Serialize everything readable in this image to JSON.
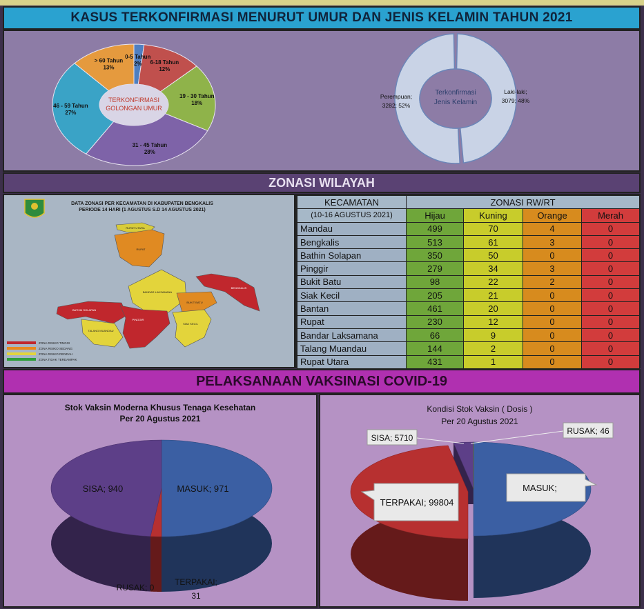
{
  "sections": {
    "age_sex_title": "KASUS TERKONFIRMASI MENURUT UMUR DAN JENIS KELAMIN TAHUN 2021",
    "zonasi_title": "ZONASI WILAYAH",
    "vaksin_title": "PELAKSANAAN VAKSINASI COVID-19"
  },
  "map": {
    "title_line1": "DATA ZONASI PER KECAMATAN DI KABUPATEN BENGKALIS",
    "title_line2": "PERIODE 14 HARI (1 AGUSTUS S.D 14 AGUSTUS 2021)",
    "legend": [
      {
        "label": "ZONA RISIKO TINGGI",
        "color": "#c0272d"
      },
      {
        "label": "ZONA RISIKO SEDANG",
        "color": "#e8891d"
      },
      {
        "label": "ZONA RISIKO RENDAH",
        "color": "#e3d43b"
      },
      {
        "label": "ZONA TIDAK TERDAMPAK",
        "color": "#2e9e3a"
      }
    ],
    "regions": {
      "rupat_utara": "RUPAT UTARA",
      "rupat": "RUPAT",
      "bandar_laksamana": "BANDAR LAKSAMANA",
      "bukit_batu": "BUKIT BATU",
      "bathin_solapan": "BATHIN SOLAPAN",
      "talang_muandau": "TALANG MUANDAU",
      "pinggir": "PINGGIR",
      "siak_kecil": "SIAK KECIL",
      "bengkalis": "BENGKALIS"
    }
  },
  "table": {
    "kecamatan_header": "KECAMATAN",
    "period": "(10-16 AGUSTUS 2021)",
    "zonasi_header": "ZONASI  RW/RT",
    "columns": [
      "Hijau",
      "Kuning",
      "Orange",
      "Merah"
    ],
    "rows": [
      {
        "name": "Mandau",
        "values": [
          "499",
          "70",
          "4",
          "0"
        ]
      },
      {
        "name": "Bengkalis",
        "values": [
          "513",
          "61",
          "3",
          "0"
        ]
      },
      {
        "name": "Bathin Solapan",
        "values": [
          "350",
          "50",
          "0",
          "0"
        ]
      },
      {
        "name": "Pinggir",
        "values": [
          "279",
          "34",
          "3",
          "0"
        ]
      },
      {
        "name": "Bukit Batu",
        "values": [
          "98",
          "22",
          "2",
          "0"
        ]
      },
      {
        "name": "Siak Kecil",
        "values": [
          "205",
          "21",
          "0",
          "0"
        ]
      },
      {
        "name": "Bantan",
        "values": [
          "461",
          "20",
          "0",
          "0"
        ]
      },
      {
        "name": "Rupat",
        "values": [
          "230",
          "12",
          "0",
          "0"
        ]
      },
      {
        "name": "Bandar Laksamana",
        "values": [
          "66",
          "9",
          "0",
          "0"
        ]
      },
      {
        "name": "Talang Muandau",
        "values": [
          "144",
          "2",
          "0",
          "0"
        ]
      },
      {
        "name": "Rupat Utara",
        "values": [
          "431",
          "1",
          "0",
          "0"
        ]
      }
    ]
  },
  "chart_data": [
    {
      "type": "pie",
      "variant": "donut",
      "center_label_line1": "TERKONFIRMASI",
      "center_label_line2": "GOLONGAN UMUR",
      "slices": [
        {
          "label": "0-5 Tahun",
          "pct_text": "2%",
          "value": 2,
          "color": "#4f7fc0"
        },
        {
          "label": "6-18 Tahun",
          "pct_text": "12%",
          "value": 12,
          "color": "#c0504d"
        },
        {
          "label": "19 - 30 Tahun",
          "pct_text": "18%",
          "value": 18,
          "color": "#8fb34a"
        },
        {
          "label": "31 - 45 Tahun",
          "pct_text": "28%",
          "value": 28,
          "color": "#7e63a8"
        },
        {
          "label": "46 - 59 Tahun",
          "pct_text": "27%",
          "value": 27,
          "color": "#3aa3c6"
        },
        {
          "label": "> 60 Tahun",
          "pct_text": "13%",
          "value": 13,
          "color": "#e59a3e"
        }
      ]
    },
    {
      "type": "pie",
      "variant": "donut",
      "center_label_line1": "Terkonfirmasi",
      "center_label_line2": "Jenis Kelamin",
      "slices": [
        {
          "label_line1": "Laki-laki;",
          "label_line2": "3079; 48%",
          "value": 3079,
          "color": "#c9d3e6"
        },
        {
          "label_line1": "Perempuan;",
          "label_line2": "3282; 52%",
          "value": 3282,
          "color": "#c9d3e6"
        }
      ]
    },
    {
      "type": "pie",
      "variant": "3d",
      "title_line1": "Stok Vaksin Moderna Khusus Tenaga Kesehatan",
      "title_line2": "Per 20 Agustus 2021",
      "slices": [
        {
          "label": "MASUK; 971",
          "value": 971,
          "color": "#3b5fa3"
        },
        {
          "label_line1": "TERPAKAI;",
          "label_line2": "31",
          "value": 31,
          "color": "#b73030"
        },
        {
          "label": "RUSAK; 0",
          "value": 0,
          "color": "#7a9a3a"
        },
        {
          "label": "SISA; 940",
          "value": 940,
          "color": "#5d3f88"
        }
      ]
    },
    {
      "type": "pie",
      "variant": "3d",
      "title_line1": "Kondisi Stok Vaksin ( Dosis )",
      "title_line2": "Per 20 Agustus 2021",
      "slices": [
        {
          "label": "MASUK;",
          "value": 105560,
          "color": "#3b5fa3"
        },
        {
          "label": "TERPAKAI; 99804",
          "value": 99804,
          "color": "#b73030"
        },
        {
          "label": "SISA; 5710",
          "value": 5710,
          "color": "#5d3f88"
        },
        {
          "label": "RUSAK; 46",
          "value": 46,
          "color": "#6f8f3a"
        }
      ]
    }
  ]
}
